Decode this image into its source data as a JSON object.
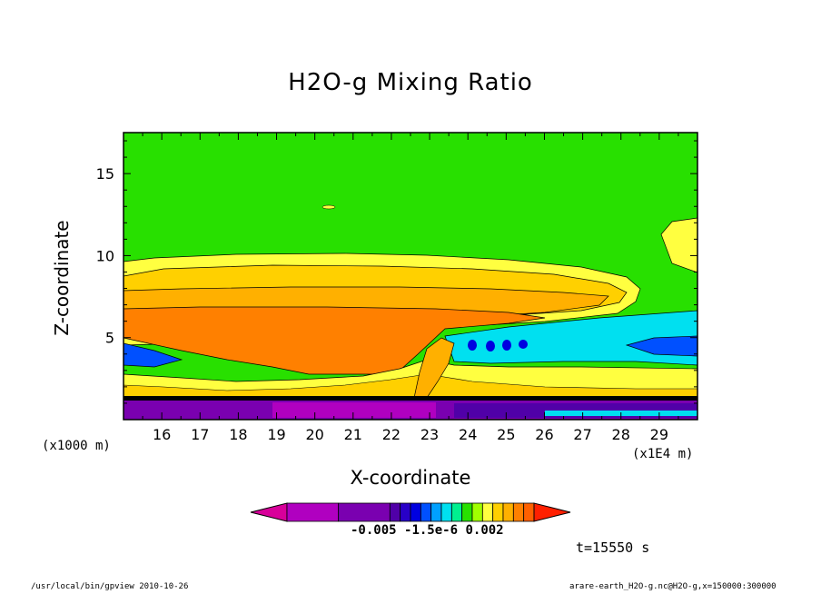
{
  "chart_data": {
    "type": "heatmap",
    "title": "H2O-g Mixing Ratio",
    "xlabel": "X-coordinate",
    "ylabel": "Z-coordinate",
    "x_multiplier": "(x1E4 m)",
    "y_multiplier": "(x1000 m)",
    "x_ticks": [
      16,
      17,
      18,
      19,
      20,
      21,
      22,
      23,
      24,
      25,
      26,
      27,
      28,
      29
    ],
    "y_ticks": [
      5,
      10,
      15
    ],
    "xlim": [
      15.0,
      30.0
    ],
    "ylim": [
      0.0,
      17.5
    ],
    "colorbar": {
      "labels": [
        "-0.005",
        "-1.5e-6",
        "0.002"
      ],
      "colors": [
        "#d8009a",
        "#b000c0",
        "#7a00b0",
        "#5000a8",
        "#2800c8",
        "#0000e0",
        "#0050ff",
        "#00a0ff",
        "#00e0f0",
        "#00f090",
        "#28e000",
        "#a0ff00",
        "#ffff40",
        "#ffd000",
        "#ffb000",
        "#ff8000",
        "#ff6000",
        "#ff2000"
      ]
    },
    "time_label": "t=15550 s"
  },
  "footer": {
    "left": "/usr/local/bin/gpview  2010-10-26",
    "right": "arare-earth_H2O-g.nc@H2O-g,x=150000:300000"
  }
}
